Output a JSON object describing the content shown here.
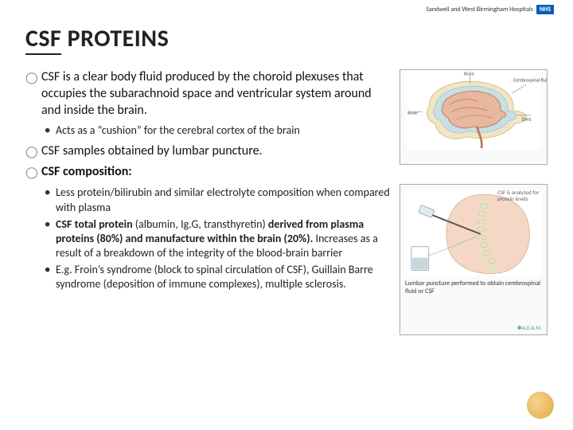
{
  "header": {
    "brand": "Sandwell and West Birmingham Hospitals",
    "nhs": "NHS"
  },
  "title": {
    "word1": "CSF",
    "word2": "PROTEINS"
  },
  "bullets": [
    {
      "text": "CSF is a clear body fluid produced by the choroid plexuses that occupies the subarachnoid space and ventricular system around and inside the brain.",
      "sub": [
        "Acts as a “cushion” for the cerebral cortex of the brain"
      ]
    },
    {
      "text": "CSF samples obtained by lumbar puncture.",
      "sub": []
    },
    {
      "text_html": "<b>CSF composition:</b>",
      "sub": [
        "Less protein/bilirubin and similar electrolyte composition when compared with plasma",
        "<b>CSF total protein</b> (albumin, Ig.G, transthyretin) <b>derived from plasma proteins (80%) and manufacture within the brain (20%).</b> Increases as a result of a breakdown of the integrity of the blood-brain barrier",
        "E.g. Froin’s syndrome (block to spinal circulation of CSF), Guillain Barre syndrome (deposition of immune complexes), multiple sclerosis."
      ]
    }
  ],
  "images": {
    "brain": {
      "labels": {
        "bone": "Bone",
        "brain": "Brain",
        "csf": "Cerebrospinal fluid",
        "dura": "Dura"
      },
      "colors": {
        "brain_fill": "#e9b6a0",
        "brain_stroke": "#b87a5a",
        "bone": "#f2e6c2",
        "fluid": "#c8dfe6",
        "dura": "#9c8f4f"
      }
    },
    "lumbar": {
      "note": "CSF is analyzed for protein levels",
      "caption": "Lumbar puncture performed to obtain cerebrospinal fluid or CSF",
      "adam": "✽A.D.A.M.",
      "colors": {
        "skin": "#f4d7c4",
        "spine": "#e8dfc5",
        "needle": "#555",
        "fluid": "#aecfd8",
        "beaker": "#c6d7dc"
      }
    }
  },
  "style": {
    "title_color": "#222",
    "accent_circle": "#e7b85c"
  }
}
